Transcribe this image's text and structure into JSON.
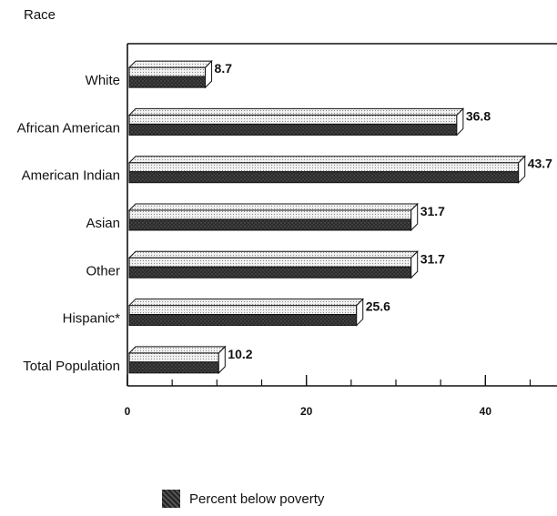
{
  "chart_data": {
    "type": "bar",
    "ylabel": "Race",
    "categories": [
      "White",
      "African American",
      "American Indian",
      "Asian",
      "Other",
      "Hispanic*",
      "Total Population"
    ],
    "series": [
      {
        "name": "Percent below poverty",
        "values": [
          8.7,
          36.8,
          43.7,
          31.7,
          31.7,
          25.6,
          10.2
        ]
      }
    ],
    "value_labels": [
      "8.7",
      "36.8",
      "43.7",
      "31.7",
      "31.7",
      "25.6",
      "10.2"
    ],
    "x_ticks": [
      "0",
      "20",
      "40"
    ],
    "xlim": [
      0,
      48
    ],
    "orientation": "horizontal",
    "style": "3d",
    "grid": false,
    "legend_position": "bottom",
    "colors": {
      "bar_front": "#2b2b2b",
      "bar_top": "#d9d9d9",
      "bar_side": "#f2f2f2",
      "axis": "#111111"
    }
  }
}
